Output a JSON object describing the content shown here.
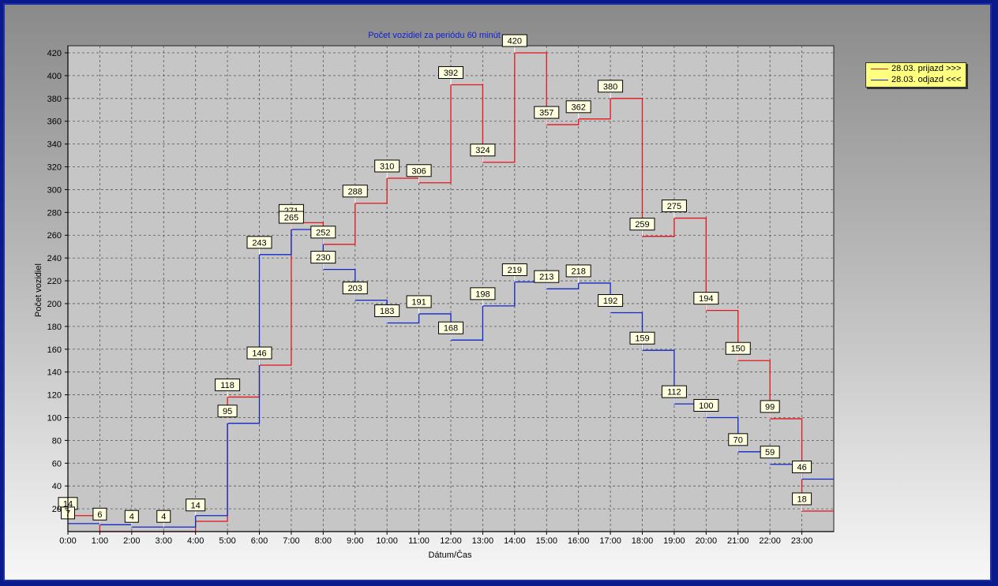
{
  "chart_data": {
    "type": "line",
    "step": true,
    "title": "Počet vozidiel za periódu 60 minút",
    "xlabel": "Dátum/Čas",
    "ylabel": "Počet vozidiel",
    "categories": [
      "0:00",
      "1:00",
      "2:00",
      "3:00",
      "4:00",
      "5:00",
      "6:00",
      "7:00",
      "8:00",
      "9:00",
      "10:00",
      "11:00",
      "12:00",
      "13:00",
      "14:00",
      "15:00",
      "16:00",
      "17:00",
      "18:00",
      "19:00",
      "20:00",
      "21:00",
      "22:00",
      "23:00"
    ],
    "yticks": [
      20,
      40,
      60,
      80,
      100,
      120,
      140,
      160,
      180,
      200,
      220,
      240,
      260,
      280,
      300,
      320,
      340,
      360,
      380,
      400,
      420
    ],
    "ylim": [
      0,
      420
    ],
    "grid": true,
    "legend_position": "top-right",
    "series": [
      {
        "name": "28.03.  prijazd >>>",
        "color": "#e8141c",
        "values": [
          14,
          0,
          0,
          0,
          9,
          118,
          146,
          271,
          252,
          288,
          310,
          306,
          392,
          324,
          420,
          357,
          362,
          380,
          259,
          275,
          194,
          150,
          99,
          18
        ]
      },
      {
        "name": "28.03.  odjazd <<<",
        "color": "#1028c8",
        "values": [
          7,
          6,
          4,
          4,
          14,
          95,
          243,
          265,
          230,
          203,
          183,
          191,
          168,
          198,
          219,
          213,
          218,
          192,
          159,
          112,
          100,
          70,
          59,
          46
        ]
      }
    ],
    "data_labels": [
      {
        "series": 0,
        "index": 0,
        "text": "14"
      },
      {
        "series": 1,
        "index": 0,
        "text": "7"
      },
      {
        "series": 1,
        "index": 1,
        "text": "6"
      },
      {
        "series": 1,
        "index": 2,
        "text": "4"
      },
      {
        "series": 1,
        "index": 3,
        "text": "4"
      },
      {
        "series": 1,
        "index": 4,
        "text": "14"
      },
      {
        "series": 0,
        "index": 5,
        "text": "118"
      },
      {
        "series": 1,
        "index": 5,
        "text": "95"
      },
      {
        "series": 0,
        "index": 6,
        "text": "146"
      },
      {
        "series": 1,
        "index": 6,
        "text": "243"
      },
      {
        "series": 0,
        "index": 7,
        "text": "271"
      },
      {
        "series": 1,
        "index": 7,
        "text": "265"
      },
      {
        "series": 0,
        "index": 8,
        "text": "252"
      },
      {
        "series": 1,
        "index": 8,
        "text": "230"
      },
      {
        "series": 0,
        "index": 9,
        "text": "288"
      },
      {
        "series": 1,
        "index": 9,
        "text": "203"
      },
      {
        "series": 0,
        "index": 10,
        "text": "310"
      },
      {
        "series": 1,
        "index": 10,
        "text": "183"
      },
      {
        "series": 0,
        "index": 11,
        "text": "306"
      },
      {
        "series": 1,
        "index": 11,
        "text": "191"
      },
      {
        "series": 0,
        "index": 12,
        "text": "392"
      },
      {
        "series": 1,
        "index": 12,
        "text": "168"
      },
      {
        "series": 0,
        "index": 13,
        "text": "324"
      },
      {
        "series": 1,
        "index": 13,
        "text": "198"
      },
      {
        "series": 0,
        "index": 14,
        "text": "420"
      },
      {
        "series": 1,
        "index": 14,
        "text": "219"
      },
      {
        "series": 0,
        "index": 15,
        "text": "357"
      },
      {
        "series": 1,
        "index": 15,
        "text": "213"
      },
      {
        "series": 0,
        "index": 16,
        "text": "362"
      },
      {
        "series": 1,
        "index": 16,
        "text": "218"
      },
      {
        "series": 0,
        "index": 17,
        "text": "380"
      },
      {
        "series": 1,
        "index": 17,
        "text": "192"
      },
      {
        "series": 0,
        "index": 18,
        "text": "259"
      },
      {
        "series": 1,
        "index": 18,
        "text": "159"
      },
      {
        "series": 0,
        "index": 19,
        "text": "275"
      },
      {
        "series": 1,
        "index": 19,
        "text": "112"
      },
      {
        "series": 0,
        "index": 20,
        "text": "194"
      },
      {
        "series": 1,
        "index": 20,
        "text": "100"
      },
      {
        "series": 0,
        "index": 21,
        "text": "150"
      },
      {
        "series": 1,
        "index": 21,
        "text": "70"
      },
      {
        "series": 0,
        "index": 22,
        "text": "99"
      },
      {
        "series": 1,
        "index": 22,
        "text": "59"
      },
      {
        "series": 1,
        "index": 23,
        "text": "46"
      },
      {
        "series": 0,
        "index": 23,
        "text": "18"
      }
    ]
  }
}
